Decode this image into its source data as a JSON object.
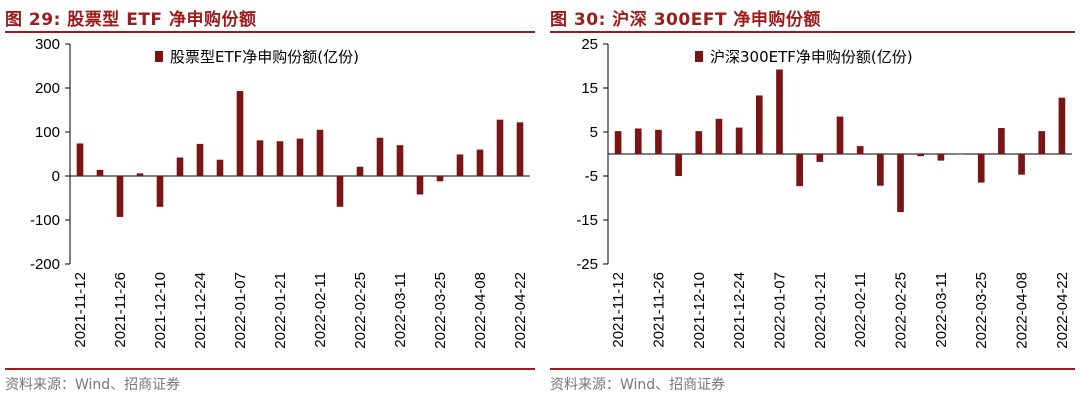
{
  "panels": [
    {
      "title": "图 29:  股票型 ETF 净申购份额",
      "source": "资料来源：Wind、招商证券"
    },
    {
      "title": "图 30:  沪深 300EFT 净申购份额",
      "source": "资料来源：Wind、招商证券"
    }
  ],
  "colors": {
    "accent": "#9e1b1b",
    "bar": "#7b1414",
    "axis": "#000000"
  },
  "chart_data": [
    {
      "type": "bar",
      "title": "股票型 ETF 净申购份额",
      "legend": "股票型ETF净申购份额(亿份)",
      "legend_position": "top-center",
      "ylim": [
        -200,
        300
      ],
      "yticks": [
        300,
        200,
        100,
        0,
        -100,
        -200
      ],
      "xtick_labels": [
        "2021-11-12",
        "2021-11-26",
        "2021-12-10",
        "2021-12-24",
        "2022-01-07",
        "2022-01-21",
        "2022-02-11",
        "2022-02-25",
        "2022-03-11",
        "2022-03-25",
        "2022-04-08",
        "2022-04-22"
      ],
      "values": [
        74,
        14,
        -93,
        6,
        -70,
        42,
        73,
        37,
        193,
        81,
        79,
        85,
        105,
        -70,
        21,
        87,
        70,
        -42,
        -12,
        49,
        60,
        128,
        122
      ]
    },
    {
      "type": "bar",
      "title": "沪深300EFT 净申购份额",
      "legend": "沪深300ETF净申购份额(亿份)",
      "legend_position": "top-center",
      "ylim": [
        -25,
        25
      ],
      "yticks": [
        25,
        15,
        5,
        -5,
        -15,
        -25
      ],
      "xtick_labels": [
        "2021-11-12",
        "2021-11-26",
        "2021-12-10",
        "2021-12-24",
        "2022-01-07",
        "2022-01-21",
        "2022-02-11",
        "2022-02-25",
        "2022-03-11",
        "2022-03-25",
        "2022-04-08",
        "2022-04-22"
      ],
      "values": [
        5.2,
        5.8,
        5.5,
        -5,
        5.2,
        8,
        6,
        13.3,
        19.2,
        -7.3,
        -1.8,
        8.5,
        1.8,
        -7.2,
        -13.2,
        -0.5,
        -1.5,
        0,
        -6.5,
        5.9,
        -4.7,
        5.2,
        12.8
      ]
    }
  ]
}
